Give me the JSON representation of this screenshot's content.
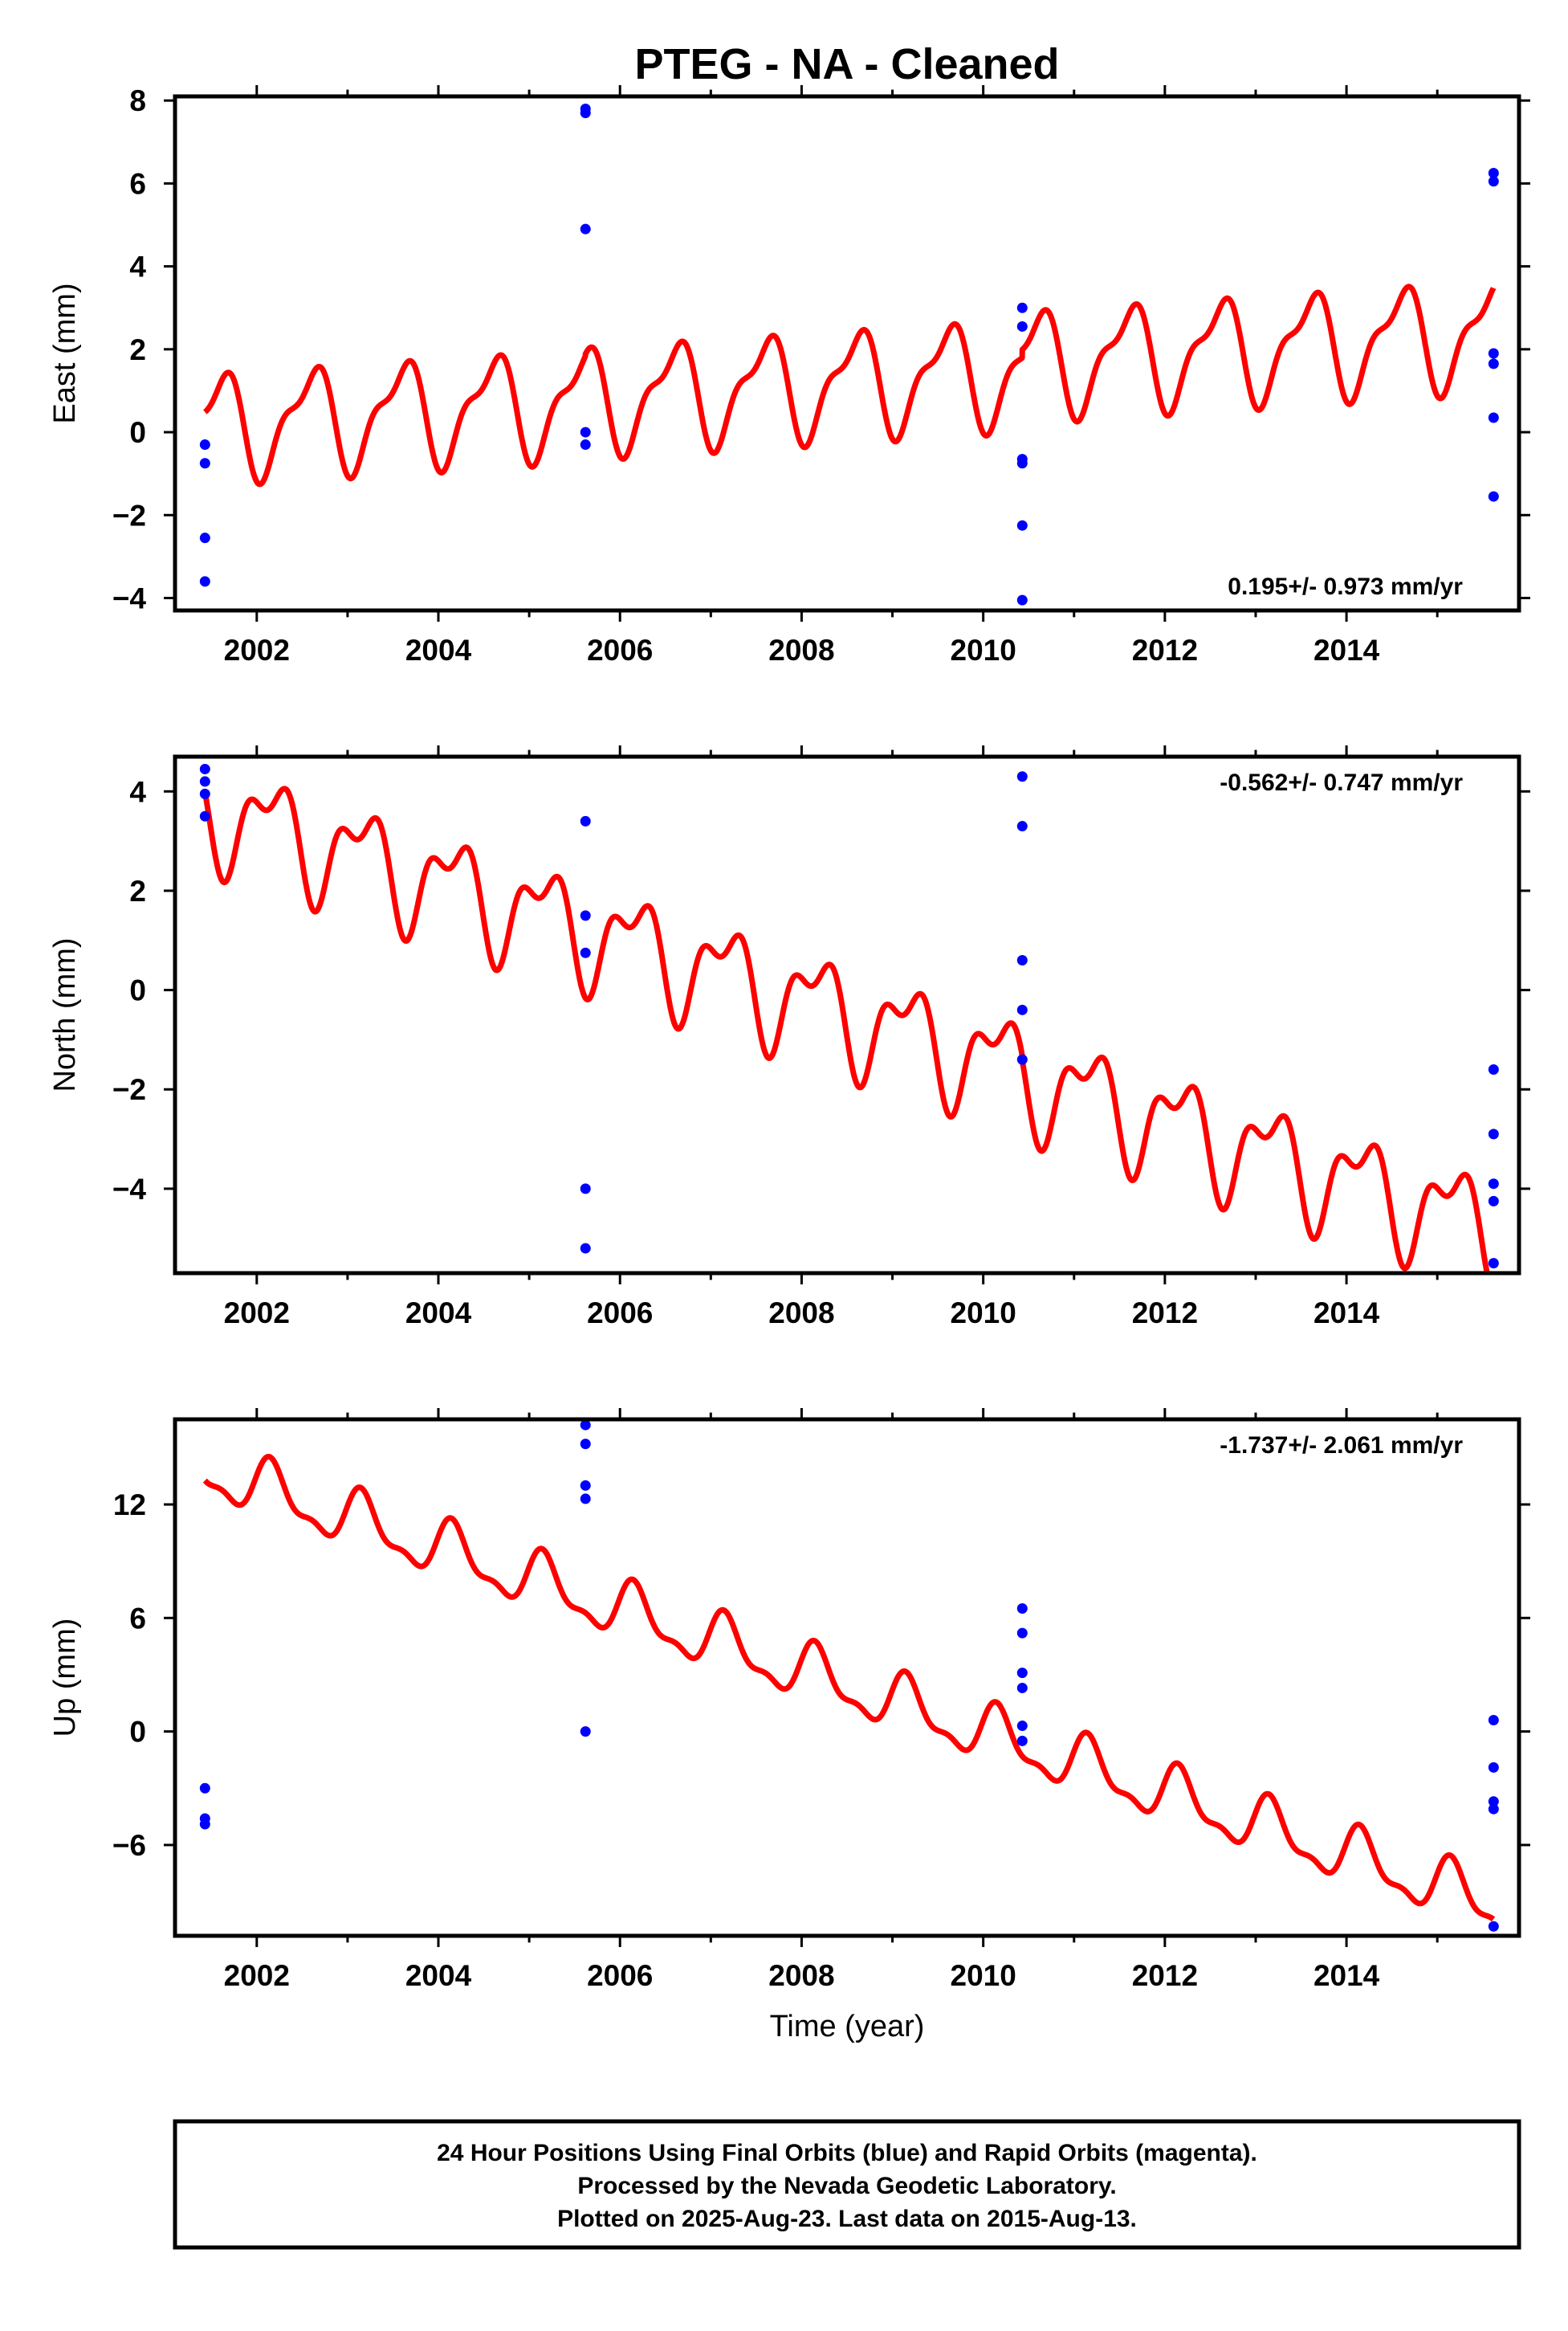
{
  "title": "PTEG  - NA - Cleaned",
  "xlabel": "Time (year)",
  "footer": {
    "line1": "24 Hour Positions Using Final Orbits (blue) and Rapid Orbits (magenta).",
    "line2": "Processed by the Nevada Geodetic Laboratory.",
    "line3": "Plotted on 2025-Aug-23. Last data on 2015-Aug-13."
  },
  "colors": {
    "data_points": "#0000ff",
    "fit_line": "#ff0000",
    "frame": "#000000"
  },
  "chart_data": [
    {
      "type": "scatter",
      "id": "east",
      "ylabel": "East (mm)",
      "rate_label": "0.195+/- 0.973 mm/yr",
      "rate_position": "bottom-right",
      "xlim": [
        2001.1,
        2015.9
      ],
      "ylim": [
        -4.3,
        8.1
      ],
      "xticks": [
        2002,
        2004,
        2006,
        2008,
        2010,
        2012,
        2014
      ],
      "yticks": [
        -4,
        -2,
        0,
        2,
        4,
        6,
        8
      ],
      "points": [
        {
          "x": 2001.43,
          "y": -0.3
        },
        {
          "x": 2001.43,
          "y": -0.75
        },
        {
          "x": 2001.43,
          "y": -2.55
        },
        {
          "x": 2001.43,
          "y": -3.6
        },
        {
          "x": 2005.62,
          "y": 7.8
        },
        {
          "x": 2005.62,
          "y": 7.7
        },
        {
          "x": 2005.62,
          "y": 4.9
        },
        {
          "x": 2005.62,
          "y": 0.0
        },
        {
          "x": 2005.62,
          "y": -0.3
        },
        {
          "x": 2010.43,
          "y": 3.0
        },
        {
          "x": 2010.43,
          "y": 2.55
        },
        {
          "x": 2010.43,
          "y": -0.65
        },
        {
          "x": 2010.43,
          "y": -0.75
        },
        {
          "x": 2010.43,
          "y": -2.25
        },
        {
          "x": 2010.43,
          "y": -4.05
        },
        {
          "x": 2015.62,
          "y": 6.25
        },
        {
          "x": 2015.62,
          "y": 6.05
        },
        {
          "x": 2015.62,
          "y": 1.9
        },
        {
          "x": 2015.62,
          "y": 1.65
        },
        {
          "x": 2015.62,
          "y": 0.35
        },
        {
          "x": 2015.62,
          "y": -1.55
        }
      ],
      "fit": {
        "x_range": [
          2001.43,
          2015.62
        ],
        "segments": [
          {
            "x_start": 2001.43,
            "x_end": 2005.62,
            "intercept": 0.15,
            "slope": 0.14,
            "annual_amp": 1.15,
            "annual_phase": -2.13,
            "semiannual_amp": 0.45,
            "semiannual_phase": -1.57
          },
          {
            "x_start": 2005.62,
            "x_end": 2010.43,
            "intercept": 0.2,
            "slope": 0.14,
            "annual_amp": 1.15,
            "annual_phase": -2.13,
            "semiannual_amp": 0.45,
            "semiannual_phase": -1.57
          },
          {
            "x_start": 2010.43,
            "x_end": 2015.62,
            "intercept": 0.4,
            "slope": 0.14,
            "annual_amp": 1.15,
            "annual_phase": -2.13,
            "semiannual_amp": 0.45,
            "semiannual_phase": -1.57
          }
        ]
      }
    },
    {
      "type": "scatter",
      "id": "north",
      "ylabel": "North (mm)",
      "rate_label": "-0.562+/- 0.747 mm/yr",
      "rate_position": "top-right",
      "xlim": [
        2001.1,
        2015.9
      ],
      "ylim": [
        -5.7,
        4.7
      ],
      "xticks": [
        2002,
        2004,
        2006,
        2008,
        2010,
        2012,
        2014
      ],
      "yticks": [
        -4,
        -2,
        0,
        2,
        4
      ],
      "points": [
        {
          "x": 2001.43,
          "y": 4.45
        },
        {
          "x": 2001.43,
          "y": 4.2
        },
        {
          "x": 2001.43,
          "y": 3.95
        },
        {
          "x": 2001.43,
          "y": 3.5
        },
        {
          "x": 2005.62,
          "y": 3.4
        },
        {
          "x": 2005.62,
          "y": 1.5
        },
        {
          "x": 2005.62,
          "y": 0.75
        },
        {
          "x": 2005.62,
          "y": -4.0
        },
        {
          "x": 2005.62,
          "y": -5.2
        },
        {
          "x": 2010.43,
          "y": 4.3
        },
        {
          "x": 2010.43,
          "y": 3.3
        },
        {
          "x": 2010.43,
          "y": 0.6
        },
        {
          "x": 2010.43,
          "y": -0.4
        },
        {
          "x": 2010.43,
          "y": -1.4
        },
        {
          "x": 2015.62,
          "y": -1.6
        },
        {
          "x": 2015.62,
          "y": -2.9
        },
        {
          "x": 2015.62,
          "y": -3.9
        },
        {
          "x": 2015.62,
          "y": -4.25
        },
        {
          "x": 2015.62,
          "y": -5.5
        }
      ],
      "fit": {
        "x_range": [
          2001.43,
          2015.62
        ],
        "segments": [
          {
            "x_start": 2001.43,
            "x_end": 2005.62,
            "intercept": 3.67,
            "slope": -0.59,
            "annual_amp": 0.9,
            "annual_phase": 0.52,
            "semiannual_amp": 0.5,
            "semiannual_phase": 3.14
          },
          {
            "x_start": 2005.62,
            "x_end": 2010.43,
            "intercept": 3.67,
            "slope": -0.59,
            "annual_amp": 0.9,
            "annual_phase": 0.52,
            "semiannual_amp": 0.5,
            "semiannual_phase": 3.14
          },
          {
            "x_start": 2010.43,
            "x_end": 2015.62,
            "intercept": 3.57,
            "slope": -0.59,
            "annual_amp": 0.9,
            "annual_phase": 0.52,
            "semiannual_amp": 0.5,
            "semiannual_phase": 3.14
          }
        ]
      }
    },
    {
      "type": "scatter",
      "id": "up",
      "ylabel": "Up (mm)",
      "rate_label": "-1.737+/- 2.061 mm/yr",
      "rate_position": "top-right",
      "xlim": [
        2001.1,
        2015.9
      ],
      "ylim": [
        -10.8,
        16.5
      ],
      "xticks": [
        2002,
        2004,
        2006,
        2008,
        2010,
        2012,
        2014
      ],
      "yticks": [
        -6,
        0,
        6,
        12
      ],
      "points": [
        {
          "x": 2001.43,
          "y": -3.0
        },
        {
          "x": 2001.43,
          "y": -4.6
        },
        {
          "x": 2001.43,
          "y": -4.9
        },
        {
          "x": 2005.62,
          "y": 16.2
        },
        {
          "x": 2005.62,
          "y": 15.2
        },
        {
          "x": 2005.62,
          "y": 13.0
        },
        {
          "x": 2005.62,
          "y": 12.3
        },
        {
          "x": 2005.62,
          "y": 0.0
        },
        {
          "x": 2010.43,
          "y": 6.5
        },
        {
          "x": 2010.43,
          "y": 5.2
        },
        {
          "x": 2010.43,
          "y": 3.1
        },
        {
          "x": 2010.43,
          "y": 2.3
        },
        {
          "x": 2010.43,
          "y": 0.3
        },
        {
          "x": 2010.43,
          "y": -0.5
        },
        {
          "x": 2015.62,
          "y": 0.6
        },
        {
          "x": 2015.62,
          "y": -1.9
        },
        {
          "x": 2015.62,
          "y": -3.7
        },
        {
          "x": 2015.62,
          "y": -4.1
        },
        {
          "x": 2015.62,
          "y": -10.3
        }
      ],
      "fit": {
        "x_range": [
          2001.43,
          2015.62
        ],
        "segments": [
          {
            "x_start": 2001.43,
            "x_end": 2005.62,
            "intercept": 13.8,
            "slope": -1.62,
            "annual_amp": 1.35,
            "annual_phase": 0.52,
            "semiannual_amp": 0.55,
            "semiannual_phase": 0.0
          },
          {
            "x_start": 2005.62,
            "x_end": 2010.43,
            "intercept": 13.8,
            "slope": -1.62,
            "annual_amp": 1.35,
            "annual_phase": 0.52,
            "semiannual_amp": 0.55,
            "semiannual_phase": 0.0
          },
          {
            "x_start": 2010.43,
            "x_end": 2015.62,
            "intercept": 13.8,
            "slope": -1.62,
            "annual_amp": 1.35,
            "annual_phase": 0.52,
            "semiannual_amp": 0.55,
            "semiannual_phase": 0.0
          }
        ]
      }
    }
  ]
}
